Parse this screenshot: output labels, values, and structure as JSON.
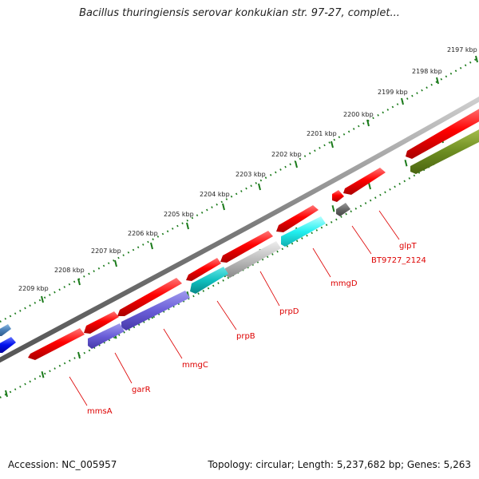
{
  "title": "Bacillus thuringiensis serovar konkukian str. 97-27, complet...",
  "footer": {
    "accession": "Accession: NC_005957",
    "summary": "Topology: circular; Length: 5,237,682 bp; Genes: 5,263"
  },
  "colors": {
    "backbone": "#777777",
    "tick": "#1a7a1a",
    "label": "#dd0000"
  },
  "ticks": [
    {
      "label": "2197 kbp"
    },
    {
      "label": "2198 kbp"
    },
    {
      "label": "2199 kbp"
    },
    {
      "label": "2200 kbp"
    },
    {
      "label": "2201 kbp"
    },
    {
      "label": "2202 kbp"
    },
    {
      "label": "2203 kbp"
    },
    {
      "label": "2204 kbp"
    },
    {
      "label": "2205 kbp"
    },
    {
      "label": "2206 kbp"
    },
    {
      "label": "2207 kbp"
    },
    {
      "label": "2208 kbp"
    },
    {
      "label": "2209 kbp"
    }
  ],
  "genes": [
    {
      "name": "glpT",
      "color": "#dd0000"
    },
    {
      "name": "BT9727_2124",
      "color": "#dd0000"
    },
    {
      "name": "mmgD",
      "color": "#dd0000"
    },
    {
      "name": "prpD",
      "color": "#dd0000"
    },
    {
      "name": "prpB",
      "color": "#dd0000"
    },
    {
      "name": "mmgC",
      "color": "#dd0000"
    },
    {
      "name": "garR",
      "color": "#dd0000"
    },
    {
      "name": "mmsA",
      "color": "#dd0000"
    }
  ]
}
